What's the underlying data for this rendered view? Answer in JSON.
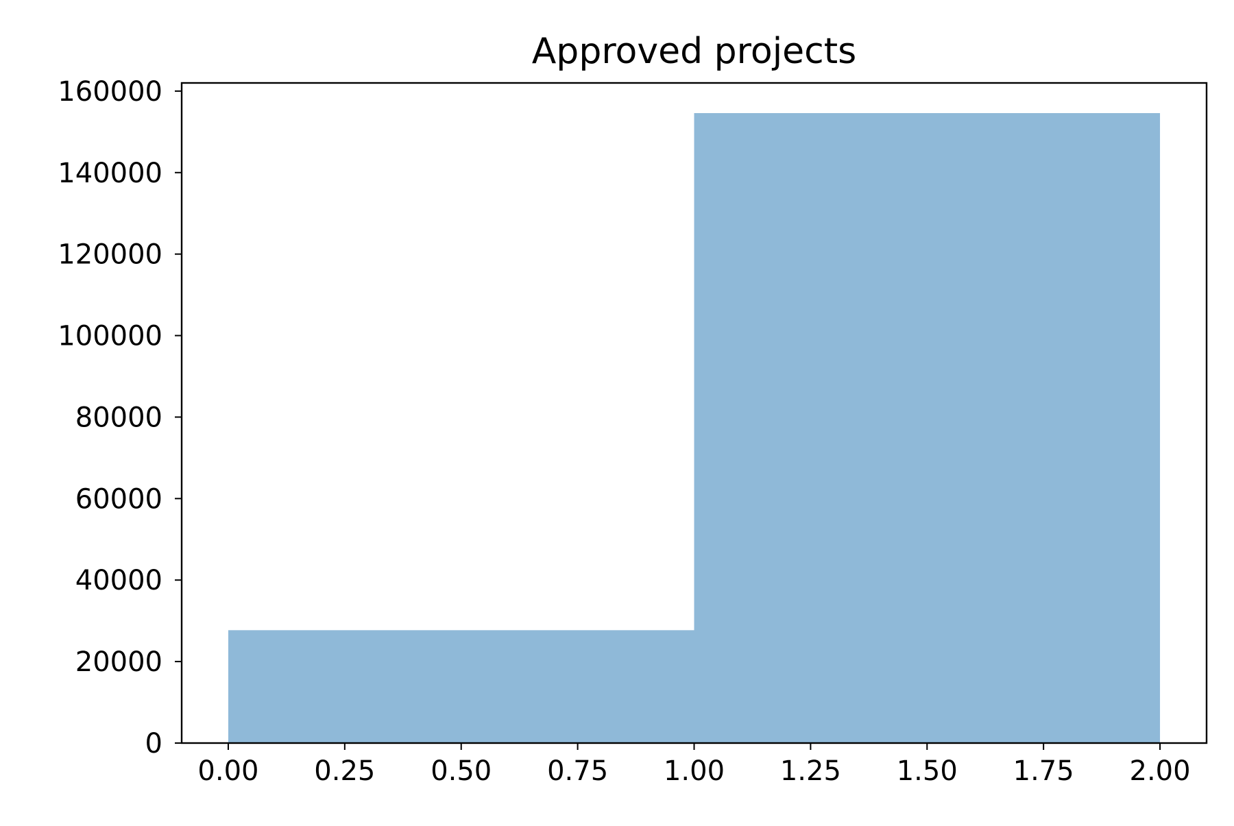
{
  "chart_data": {
    "type": "bar",
    "title": "Approved projects",
    "xlabel": "",
    "ylabel": "",
    "bins": [
      {
        "x_start": 0.0,
        "x_end": 1.0,
        "value": 27700
      },
      {
        "x_start": 1.0,
        "x_end": 2.0,
        "value": 154600
      }
    ],
    "xlim": [
      -0.1,
      2.1
    ],
    "ylim": [
      0,
      162000
    ],
    "x_ticks": [
      0.0,
      0.25,
      0.5,
      0.75,
      1.0,
      1.25,
      1.5,
      1.75,
      2.0
    ],
    "x_tick_labels": [
      "0.00",
      "0.25",
      "0.50",
      "0.75",
      "1.00",
      "1.25",
      "1.50",
      "1.75",
      "2.00"
    ],
    "y_ticks": [
      0,
      20000,
      40000,
      60000,
      80000,
      100000,
      120000,
      140000,
      160000
    ],
    "y_tick_labels": [
      "0",
      "20000",
      "40000",
      "60000",
      "80000",
      "100000",
      "120000",
      "140000",
      "160000"
    ],
    "grid": false,
    "bar_color": "#8fb9d8"
  }
}
